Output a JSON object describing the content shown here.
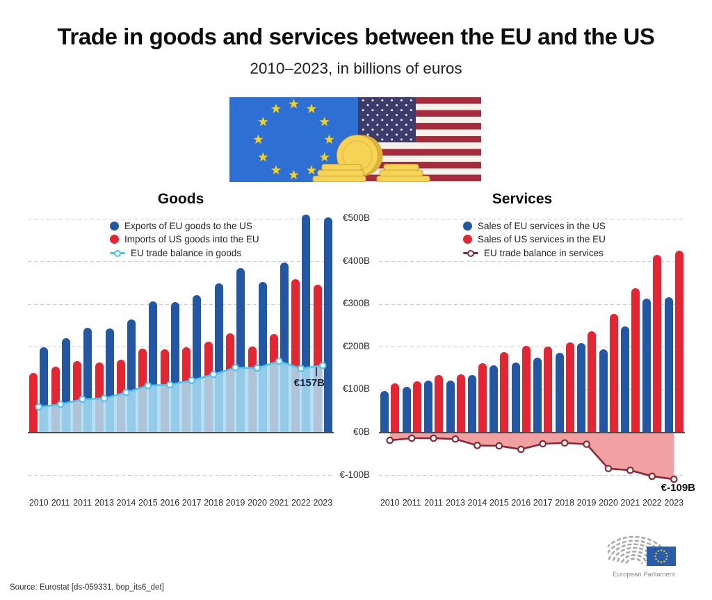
{
  "title": "Trade in goods and services between the EU and the US",
  "subtitle": "2010–2023, in billions of euros",
  "source": "Source: Eurostat [ds-059331, bop_its6_det]",
  "logo_caption": "European Parliament",
  "y_axis": {
    "labels": [
      "€500B",
      "€400B",
      "€300B",
      "€200B",
      "€100B",
      "€0B",
      "€-100B"
    ],
    "values": [
      500,
      400,
      300,
      200,
      100,
      0,
      -100
    ]
  },
  "chart_data": [
    {
      "type": "bar+line",
      "title": "Goods",
      "ylim": [
        -100,
        500
      ],
      "grid": true,
      "legend_position": "top-left-inside",
      "categories": [
        "2010",
        "2011",
        "2011",
        "2013",
        "2014",
        "2015",
        "2016",
        "2017",
        "2018",
        "2019",
        "2020",
        "2021",
        "2022",
        "2023"
      ],
      "bar_left_series": 1,
      "series": [
        {
          "key": "exports",
          "name": "Exports of EU goods to the US",
          "kind": "bar",
          "color": "#2257a6",
          "values": [
            200,
            221,
            245,
            244,
            264,
            307,
            306,
            321,
            349,
            384,
            353,
            398,
            509,
            503
          ]
        },
        {
          "key": "imports",
          "name": "Imports of US goods into the EU",
          "kind": "bar",
          "color": "#e52531",
          "values": [
            140,
            155,
            167,
            164,
            170,
            197,
            194,
            199,
            213,
            232,
            202,
            231,
            359,
            346
          ]
        },
        {
          "key": "balance",
          "name": "EU trade balance in goods",
          "kind": "line+area",
          "color": "#4cc2ef",
          "fill": "#a6dcf2",
          "values": [
            60,
            66,
            78,
            80,
            94,
            110,
            112,
            122,
            136,
            152,
            151,
            167,
            150,
            157
          ]
        }
      ],
      "annotation": "€157B"
    },
    {
      "type": "bar+line",
      "title": "Services",
      "ylim": [
        -100,
        500
      ],
      "grid": true,
      "legend_position": "top-left-inside",
      "categories": [
        "2010",
        "2011",
        "2011",
        "2013",
        "2014",
        "2015",
        "2016",
        "2017",
        "2018",
        "2019",
        "2020",
        "2021",
        "2022",
        "2023"
      ],
      "bar_left_series": 0,
      "series": [
        {
          "key": "eu-sales",
          "name": "Sales of EU services in the US",
          "kind": "bar",
          "color": "#2257a6",
          "values": [
            98,
            107,
            122,
            122,
            134,
            158,
            164,
            175,
            187,
            210,
            194,
            249,
            314,
            317
          ]
        },
        {
          "key": "us-sales",
          "name": "Sales of US services in the EU",
          "kind": "bar",
          "color": "#e52531",
          "values": [
            116,
            120,
            135,
            137,
            163,
            189,
            203,
            201,
            211,
            237,
            278,
            337,
            416,
            426
          ]
        },
        {
          "key": "balance",
          "name": "EU trade balance in services",
          "kind": "line+area",
          "color": "#8e2735",
          "fill": "#f09c9c",
          "values": [
            -18,
            -13,
            -13,
            -15,
            -30,
            -31,
            -39,
            -26,
            -24,
            -27,
            -84,
            -88,
            -102,
            -109
          ]
        }
      ],
      "annotation": "€-109B"
    }
  ],
  "illustration": {
    "eu_flag_blue": "#2d6fd3",
    "star_gold": "#f7d117",
    "us_canton_blue": "#3b3c6b",
    "us_stripe_red": "#a62b3c",
    "us_stripe_white": "#f5f2ec",
    "coin_gold": "#f6d355",
    "coin_shade": "#dfb135",
    "coin_line": "#caa53a",
    "logo_gray": "#a8a8a8",
    "logo_flag_blue": "#2a5ca9"
  }
}
